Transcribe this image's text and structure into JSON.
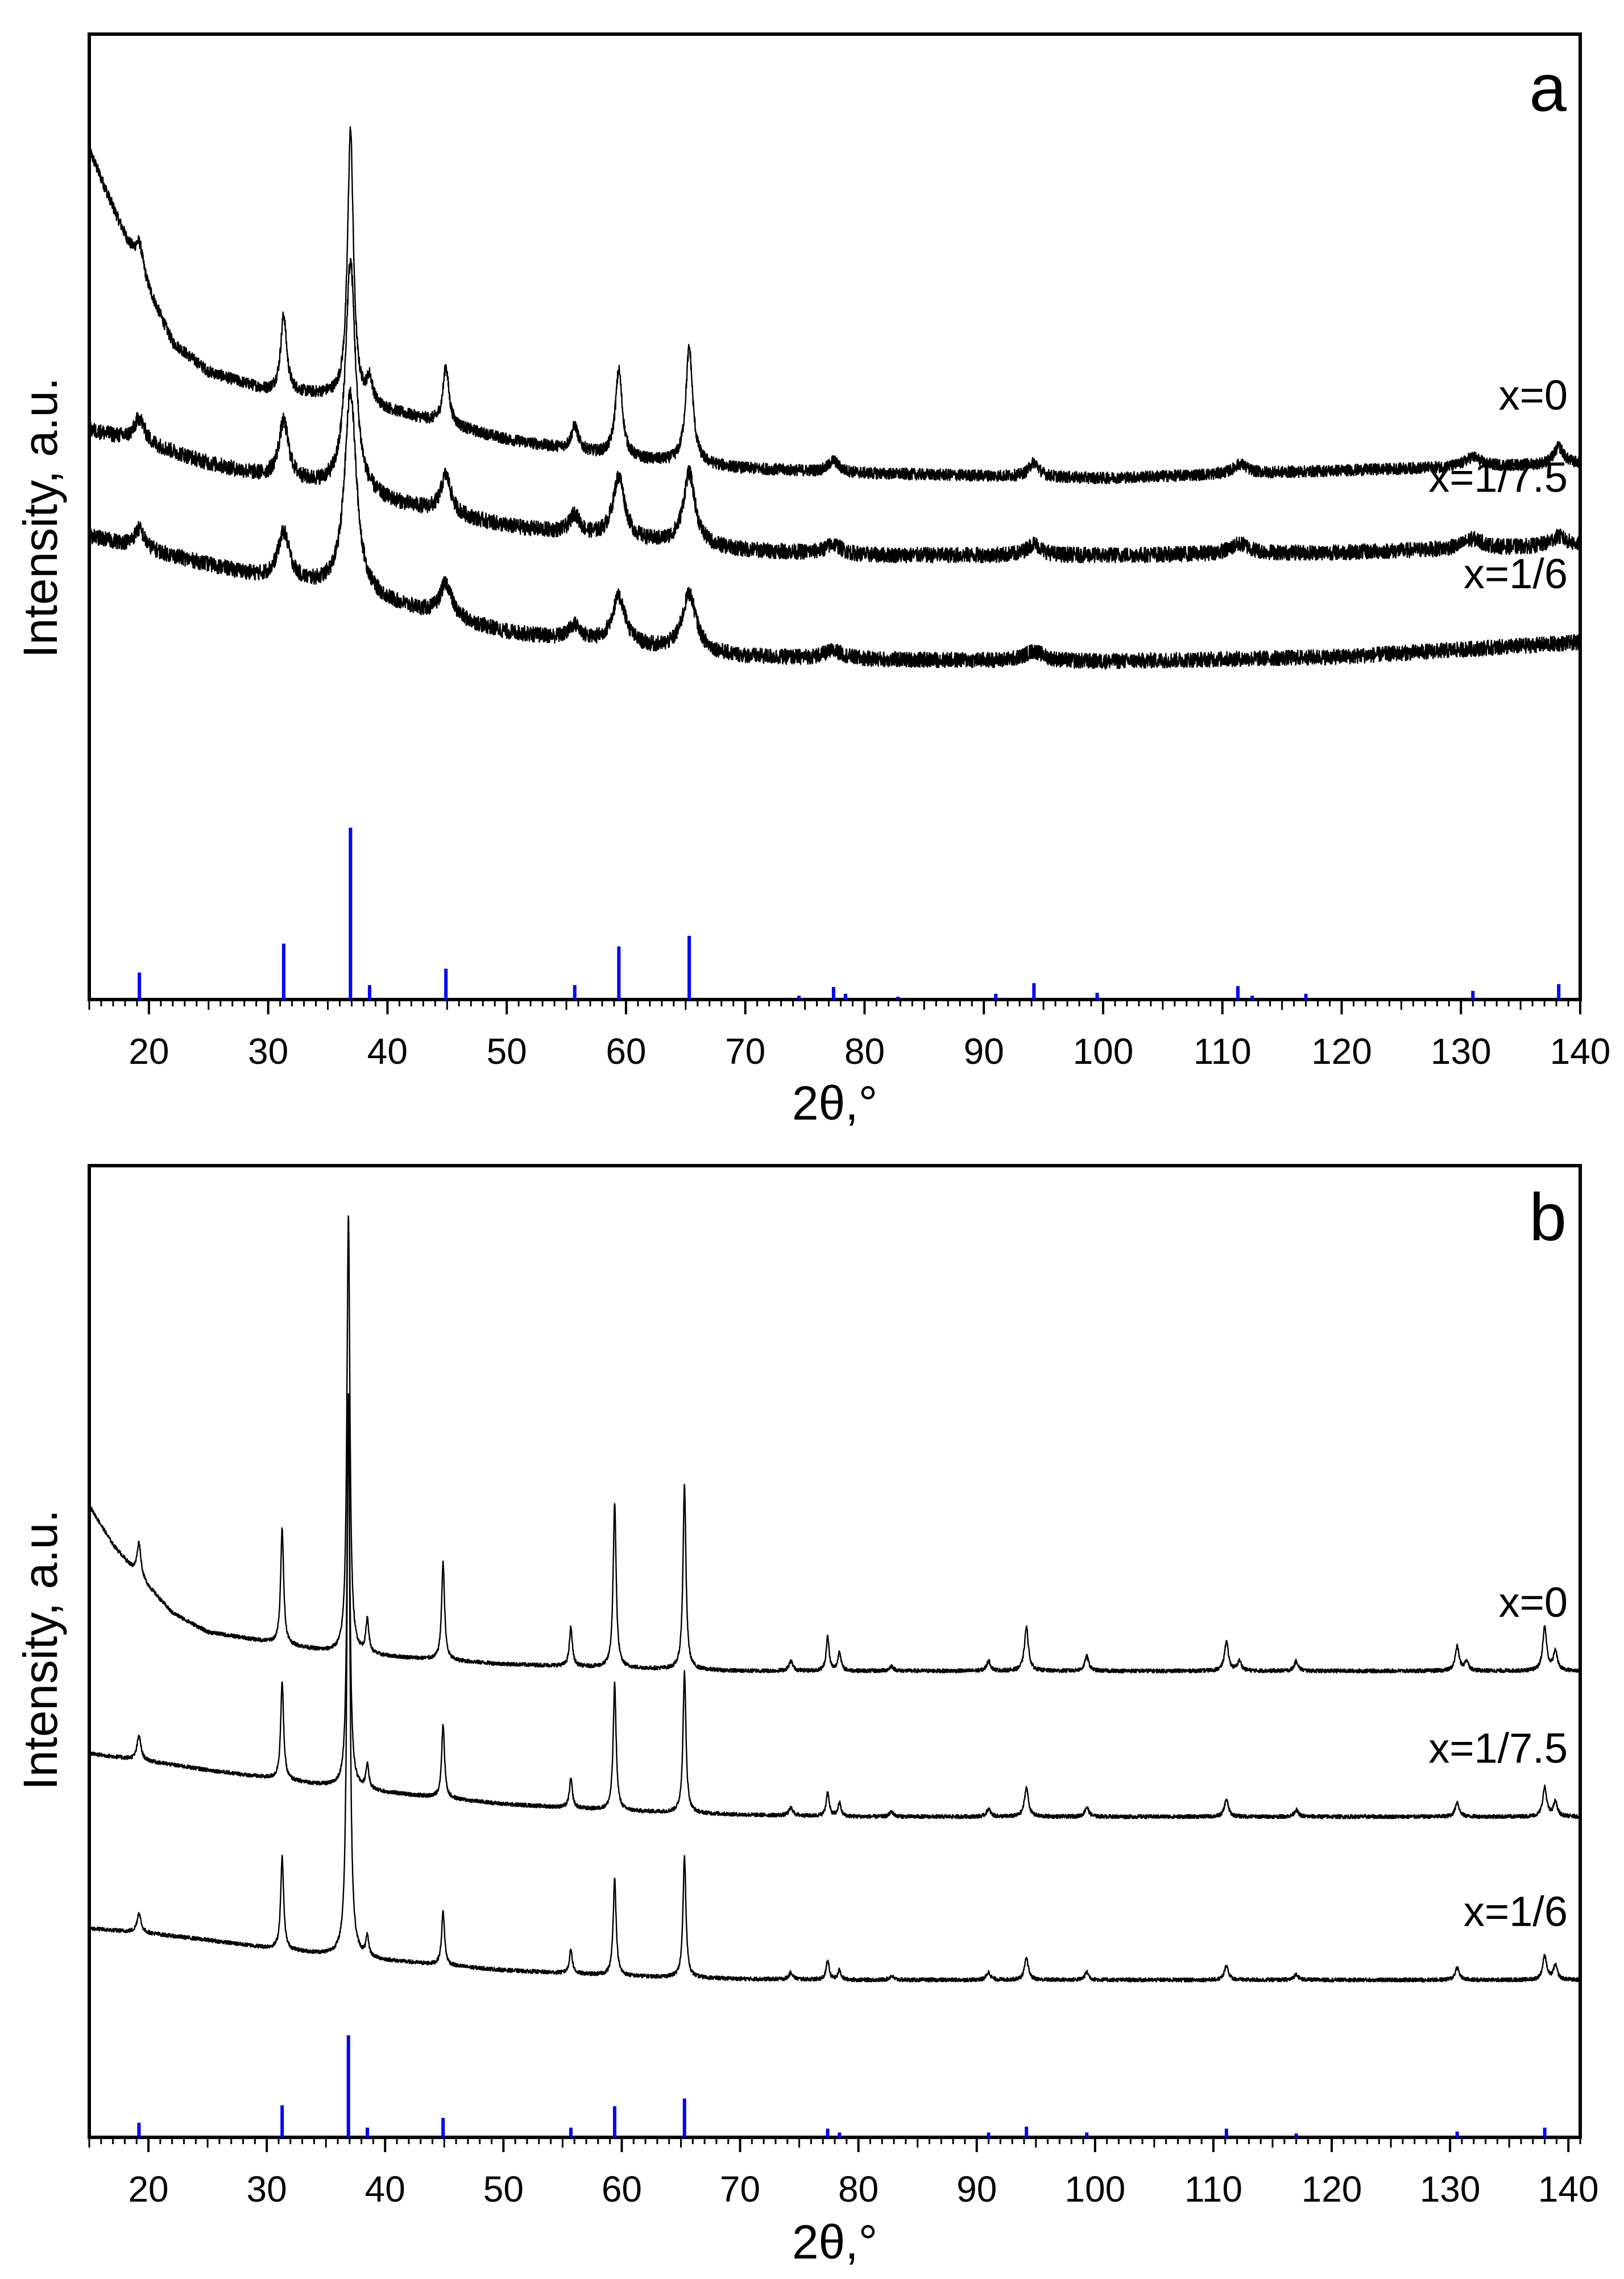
{
  "chart_data": [
    {
      "type": "line",
      "panel_label": "a",
      "xlabel": "2θ,°",
      "ylabel": "Intensity, a.u.",
      "xlim": [
        15,
        140
      ],
      "xticks": [
        20,
        30,
        40,
        50,
        60,
        70,
        80,
        90,
        100,
        110,
        120,
        130,
        140
      ],
      "ylim": [
        0,
        100
      ],
      "series": [
        {
          "name": "x=0",
          "color": "#000000",
          "base": [
            [
              15,
              88
            ],
            [
              17,
              82
            ],
            [
              19,
              76
            ],
            [
              22,
              68
            ],
            [
              25,
              65
            ],
            [
              30,
              63
            ],
            [
              35,
              62.5
            ],
            [
              40,
              61
            ],
            [
              50,
              58
            ],
            [
              60,
              56
            ],
            [
              70,
              55
            ],
            [
              80,
              54.5
            ],
            [
              100,
              54
            ],
            [
              120,
              54.8
            ],
            [
              140,
              55.5
            ]
          ],
          "peaks": [
            [
              19.2,
              3,
              0.4
            ],
            [
              31.3,
              8,
              0.3
            ],
            [
              36.9,
              28,
              0.3
            ],
            [
              38.5,
              2.5,
              0.3
            ],
            [
              44.9,
              6,
              0.3
            ],
            [
              55.7,
              2.5,
              0.35
            ],
            [
              59.4,
              9,
              0.35
            ],
            [
              65.3,
              12,
              0.35
            ],
            [
              77.4,
              1.2,
              0.5
            ],
            [
              94.2,
              1.5,
              0.5
            ],
            [
              111.5,
              1,
              0.7
            ],
            [
              131,
              1,
              0.8
            ],
            [
              138.2,
              1.8,
              0.5
            ]
          ],
          "noise": 0.6
        },
        {
          "name": "x=1/7.5",
          "color": "#000000",
          "base": [
            [
              15,
              59
            ],
            [
              20,
              57.5
            ],
            [
              25,
              55.5
            ],
            [
              30,
              54
            ],
            [
              35,
              53
            ],
            [
              40,
              51.5
            ],
            [
              50,
              49
            ],
            [
              60,
              47.5
            ],
            [
              70,
              46.5
            ],
            [
              80,
              46
            ],
            [
              100,
              46
            ],
            [
              120,
              46.3
            ],
            [
              140,
              47
            ]
          ],
          "peaks": [
            [
              19.2,
              2.5,
              0.5
            ],
            [
              31.3,
              6,
              0.5
            ],
            [
              36.9,
              24,
              0.5
            ],
            [
              44.9,
              4,
              0.5
            ],
            [
              55.7,
              2,
              0.5
            ],
            [
              59.4,
              6.5,
              0.6
            ],
            [
              65.3,
              7.5,
              0.6
            ],
            [
              77.4,
              1,
              0.8
            ],
            [
              94.2,
              1.2,
              0.7
            ],
            [
              111.5,
              1,
              1
            ],
            [
              131,
              1,
              1
            ],
            [
              138.2,
              1,
              0.8
            ]
          ],
          "noise": 0.8
        },
        {
          "name": "x=1/6",
          "color": "#000000",
          "base": [
            [
              15,
              48
            ],
            [
              20,
              46.5
            ],
            [
              25,
              45
            ],
            [
              30,
              43.5
            ],
            [
              35,
              42.5
            ],
            [
              40,
              41
            ],
            [
              50,
              38
            ],
            [
              60,
              36.5
            ],
            [
              70,
              35.5
            ],
            [
              80,
              35.2
            ],
            [
              100,
              35
            ],
            [
              120,
              35.5
            ],
            [
              140,
              37
            ]
          ],
          "peaks": [
            [
              19.2,
              2,
              0.5
            ],
            [
              31.3,
              5,
              0.6
            ],
            [
              36.9,
              21,
              0.6
            ],
            [
              44.9,
              3.5,
              0.6
            ],
            [
              55.7,
              1.5,
              0.6
            ],
            [
              59.4,
              5,
              0.7
            ],
            [
              65.3,
              6,
              0.7
            ],
            [
              77.4,
              0.8,
              1
            ],
            [
              94.2,
              1,
              1
            ]
          ],
          "noise": 0.8
        }
      ],
      "labels": [
        {
          "text": "x=0",
          "series": 0
        },
        {
          "text": "x=1/7.5",
          "series": 1
        },
        {
          "text": "x=1/6",
          "series": 2
        }
      ],
      "reference": {
        "color": "#0000ff",
        "peaks": [
          [
            19.2,
            2.8
          ],
          [
            31.3,
            5.8
          ],
          [
            36.9,
            17.8
          ],
          [
            38.5,
            1.5
          ],
          [
            44.9,
            3.2
          ],
          [
            55.7,
            1.5
          ],
          [
            59.4,
            5.5
          ],
          [
            65.3,
            6.6
          ],
          [
            74.5,
            0.4
          ],
          [
            77.4,
            1.3
          ],
          [
            78.4,
            0.6
          ],
          [
            82.8,
            0.3
          ],
          [
            91,
            0.6
          ],
          [
            94.2,
            1.7
          ],
          [
            99.5,
            0.7
          ],
          [
            111.3,
            1.4
          ],
          [
            112.5,
            0.4
          ],
          [
            117,
            0.6
          ],
          [
            131,
            0.9
          ],
          [
            138.2,
            1.6
          ]
        ]
      }
    },
    {
      "type": "line",
      "panel_label": "b",
      "xlabel": "2θ,°",
      "ylabel": "Intensity, a.u.",
      "xlim": [
        15,
        141
      ],
      "xticks": [
        20,
        30,
        40,
        50,
        60,
        70,
        80,
        90,
        100,
        110,
        120,
        130,
        140
      ],
      "ylim": [
        0,
        100
      ],
      "series": [
        {
          "name": "x=0",
          "color": "#000000",
          "base": [
            [
              15,
              65
            ],
            [
              17,
              61
            ],
            [
              19,
              58
            ],
            [
              22,
              54
            ],
            [
              25,
              52
            ],
            [
              30,
              51
            ],
            [
              35,
              50
            ],
            [
              40,
              49.5
            ],
            [
              50,
              48.7
            ],
            [
              60,
              48.3
            ],
            [
              70,
              48
            ],
            [
              80,
              48
            ],
            [
              100,
              48
            ],
            [
              120,
              48
            ],
            [
              141,
              48
            ]
          ],
          "peaks": [
            [
              19.2,
              3.5,
              0.2
            ],
            [
              31.3,
              12,
              0.15
            ],
            [
              36.9,
              45,
              0.15
            ],
            [
              38.5,
              3.5,
              0.15
            ],
            [
              44.9,
              10,
              0.15
            ],
            [
              55.7,
              4,
              0.15
            ],
            [
              59.4,
              17,
              0.15
            ],
            [
              65.3,
              19,
              0.15
            ],
            [
              74.3,
              1,
              0.2
            ],
            [
              77.4,
              3.5,
              0.15
            ],
            [
              78.4,
              2,
              0.15
            ],
            [
              82.8,
              0.5,
              0.2
            ],
            [
              91,
              1,
              0.2
            ],
            [
              94.2,
              4.5,
              0.2
            ],
            [
              99.3,
              1.5,
              0.2
            ],
            [
              111.1,
              3,
              0.2
            ],
            [
              112.2,
              1,
              0.2
            ],
            [
              117,
              1,
              0.2
            ],
            [
              130.6,
              2.5,
              0.2
            ],
            [
              131.4,
              1,
              0.2
            ],
            [
              138,
              4.5,
              0.2
            ],
            [
              138.9,
              2,
              0.2
            ]
          ],
          "noise": 0.2
        },
        {
          "name": "x=1/7.5",
          "color": "#000000",
          "base": [
            [
              15,
              39.5
            ],
            [
              20,
              38.7
            ],
            [
              25,
              37.8
            ],
            [
              30,
              37
            ],
            [
              35,
              36.2
            ],
            [
              40,
              35.5
            ],
            [
              50,
              34.3
            ],
            [
              60,
              33.6
            ],
            [
              70,
              33.2
            ],
            [
              80,
              33
            ],
            [
              100,
              33
            ],
            [
              141,
              33
            ]
          ],
          "peaks": [
            [
              19.2,
              2.5,
              0.2
            ],
            [
              31.3,
              10,
              0.15
            ],
            [
              36.9,
              38,
              0.15
            ],
            [
              38.5,
              2.5,
              0.15
            ],
            [
              44.9,
              7.5,
              0.15
            ],
            [
              55.7,
              3,
              0.15
            ],
            [
              59.4,
              13,
              0.15
            ],
            [
              65.3,
              14.5,
              0.15
            ],
            [
              74.3,
              0.8,
              0.2
            ],
            [
              77.4,
              2.5,
              0.15
            ],
            [
              78.4,
              1.4,
              0.15
            ],
            [
              82.8,
              0.5,
              0.2
            ],
            [
              91,
              0.8,
              0.2
            ],
            [
              94.2,
              3,
              0.2
            ],
            [
              99.3,
              1,
              0.2
            ],
            [
              111.1,
              1.8,
              0.2
            ],
            [
              117,
              0.7,
              0.2
            ],
            [
              130.6,
              1.5,
              0.2
            ],
            [
              138,
              3,
              0.2
            ],
            [
              138.9,
              1.5,
              0.2
            ]
          ],
          "noise": 0.2
        },
        {
          "name": "x=1/6",
          "color": "#000000",
          "base": [
            [
              15,
              21.5
            ],
            [
              20,
              21
            ],
            [
              25,
              20.3
            ],
            [
              30,
              19.5
            ],
            [
              35,
              18.8
            ],
            [
              40,
              18.2
            ],
            [
              50,
              17.2
            ],
            [
              60,
              16.6
            ],
            [
              70,
              16.3
            ],
            [
              80,
              16.2
            ],
            [
              100,
              16.2
            ],
            [
              141,
              16.2
            ]
          ],
          "peaks": [
            [
              19.2,
              2,
              0.2
            ],
            [
              31.3,
              9.5,
              0.15
            ],
            [
              36.9,
              58,
              0.15
            ],
            [
              38.5,
              2,
              0.15
            ],
            [
              44.9,
              5.5,
              0.15
            ],
            [
              55.7,
              2.5,
              0.15
            ],
            [
              59.4,
              10,
              0.15
            ],
            [
              65.3,
              12.5,
              0.15
            ],
            [
              74.3,
              0.7,
              0.2
            ],
            [
              77.4,
              2,
              0.15
            ],
            [
              78.4,
              1,
              0.15
            ],
            [
              82.8,
              0.4,
              0.2
            ],
            [
              91,
              0.8,
              0.2
            ],
            [
              94.2,
              2.2,
              0.2
            ],
            [
              99.3,
              0.8,
              0.2
            ],
            [
              111.1,
              1.5,
              0.2
            ],
            [
              117,
              0.6,
              0.2
            ],
            [
              130.6,
              1.3,
              0.2
            ],
            [
              138,
              2.5,
              0.2
            ],
            [
              138.9,
              1.5,
              0.2
            ]
          ],
          "noise": 0.2
        }
      ],
      "labels": [
        {
          "text": "x=0",
          "series": 0
        },
        {
          "text": "x=1/7.5",
          "series": 1
        },
        {
          "text": "x=1/6",
          "series": 2
        }
      ],
      "reference": {
        "color": "#0000ff",
        "peaks": [
          [
            19.2,
            1.5
          ],
          [
            31.3,
            3.3
          ],
          [
            36.9,
            10.5
          ],
          [
            38.5,
            1
          ],
          [
            44.9,
            2
          ],
          [
            55.7,
            1
          ],
          [
            59.4,
            3.2
          ],
          [
            65.3,
            4
          ],
          [
            77.4,
            0.9
          ],
          [
            78.4,
            0.5
          ],
          [
            91,
            0.5
          ],
          [
            94.2,
            1.1
          ],
          [
            99.3,
            0.5
          ],
          [
            111.1,
            0.9
          ],
          [
            117,
            0.4
          ],
          [
            130.6,
            0.6
          ],
          [
            138,
            1
          ]
        ]
      }
    }
  ]
}
